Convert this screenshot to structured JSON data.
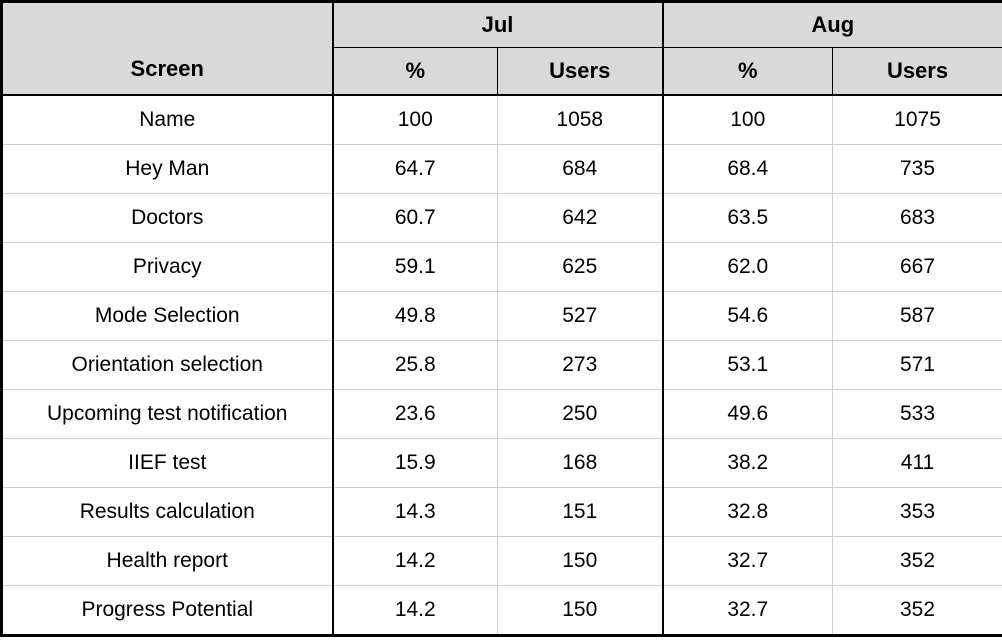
{
  "table": {
    "corner_label": "Screen",
    "groups": [
      {
        "label": "Jul"
      },
      {
        "label": "Aug"
      }
    ],
    "sub_headers": [
      "%",
      "Users",
      "%",
      "Users"
    ],
    "rows": [
      {
        "screen": "Name",
        "jul_pct": "100",
        "jul_users": "1058",
        "aug_pct": "100",
        "aug_users": "1075"
      },
      {
        "screen": "Hey Man",
        "jul_pct": "64.7",
        "jul_users": "684",
        "aug_pct": "68.4",
        "aug_users": "735"
      },
      {
        "screen": "Doctors",
        "jul_pct": "60.7",
        "jul_users": "642",
        "aug_pct": "63.5",
        "aug_users": "683"
      },
      {
        "screen": "Privacy",
        "jul_pct": "59.1",
        "jul_users": "625",
        "aug_pct": "62.0",
        "aug_users": "667"
      },
      {
        "screen": "Mode Selection",
        "jul_pct": "49.8",
        "jul_users": "527",
        "aug_pct": "54.6",
        "aug_users": "587"
      },
      {
        "screen": "Orientation selection",
        "jul_pct": "25.8",
        "jul_users": "273",
        "aug_pct": "53.1",
        "aug_users": "571"
      },
      {
        "screen": "Upcoming test notification",
        "jul_pct": "23.6",
        "jul_users": "250",
        "aug_pct": "49.6",
        "aug_users": "533"
      },
      {
        "screen": "IIEF test",
        "jul_pct": "15.9",
        "jul_users": "168",
        "aug_pct": "38.2",
        "aug_users": "411"
      },
      {
        "screen": "Results calculation",
        "jul_pct": "14.3",
        "jul_users": "151",
        "aug_pct": "32.8",
        "aug_users": "353"
      },
      {
        "screen": "Health report",
        "jul_pct": "14.2",
        "jul_users": "150",
        "aug_pct": "32.7",
        "aug_users": "352"
      },
      {
        "screen": "Progress Potential",
        "jul_pct": "14.2",
        "jul_users": "150",
        "aug_pct": "32.7",
        "aug_users": "352"
      }
    ]
  },
  "chart_data": {
    "type": "table",
    "column_groups": [
      "Jul",
      "Aug"
    ],
    "columns": [
      "Screen",
      "Jul %",
      "Jul Users",
      "Aug %",
      "Aug Users"
    ],
    "rows": [
      [
        "Name",
        100,
        1058,
        100,
        1075
      ],
      [
        "Hey Man",
        64.7,
        684,
        68.4,
        735
      ],
      [
        "Doctors",
        60.7,
        642,
        63.5,
        683
      ],
      [
        "Privacy",
        59.1,
        625,
        62.0,
        667
      ],
      [
        "Mode Selection",
        49.8,
        527,
        54.6,
        587
      ],
      [
        "Orientation selection",
        25.8,
        273,
        53.1,
        571
      ],
      [
        "Upcoming test notification",
        23.6,
        250,
        49.6,
        533
      ],
      [
        "IIEF test",
        15.9,
        168,
        38.2,
        411
      ],
      [
        "Results calculation",
        14.3,
        151,
        32.8,
        353
      ],
      [
        "Health report",
        14.2,
        150,
        32.7,
        352
      ],
      [
        "Progress Potential",
        14.2,
        150,
        32.7,
        352
      ]
    ]
  },
  "colors": {
    "header_bg": "#d9d9d9",
    "body_bg": "#ffffff",
    "grid_minor": "#cfcfcf",
    "grid_major": "#000000",
    "text": "#000000"
  }
}
